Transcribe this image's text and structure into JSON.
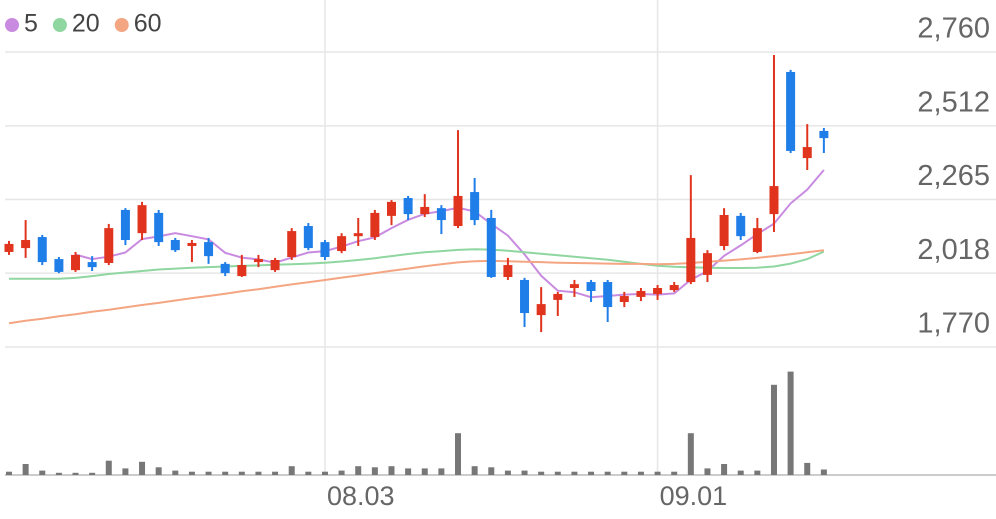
{
  "chart_data": {
    "type": "candlestick",
    "categories": [
      null,
      null,
      null,
      null,
      null,
      null,
      null,
      null,
      null,
      null,
      null,
      null,
      null,
      null,
      null,
      null,
      null,
      null,
      null,
      "08.03",
      null,
      null,
      null,
      null,
      null,
      null,
      null,
      null,
      null,
      null,
      null,
      null,
      null,
      null,
      null,
      null,
      null,
      null,
      null,
      "09.01",
      null,
      null,
      null,
      null,
      null,
      null,
      null,
      null,
      null,
      null
    ],
    "open": [
      2089,
      2102,
      2139,
      2065,
      2028,
      2055,
      2052,
      2230,
      2152,
      2220,
      2129,
      2109,
      2122,
      2049,
      2008,
      2055,
      2028,
      2072,
      2176,
      2122,
      2092,
      2142,
      2139,
      2210,
      2270,
      2216,
      2236,
      2176,
      2290,
      2203,
      2005,
      1995,
      1877,
      1928,
      1968,
      1988,
      1988,
      1921,
      1938,
      1948,
      1961,
      1988,
      2012,
      2109,
      2210,
      2089,
      2216,
      2693,
      2404,
      2495
    ],
    "high": [
      2126,
      2196,
      2146,
      2072,
      2089,
      2075,
      2183,
      2236,
      2257,
      2230,
      2136,
      2129,
      2136,
      2055,
      2079,
      2079,
      2069,
      2169,
      2186,
      2129,
      2152,
      2203,
      2230,
      2263,
      2277,
      2283,
      2246,
      2498,
      2337,
      2230,
      2069,
      2002,
      1971,
      1955,
      1995,
      1995,
      1995,
      1955,
      1968,
      1978,
      1988,
      2347,
      2095,
      2236,
      2220,
      2203,
      2750,
      2700,
      2518,
      2505
    ],
    "low": [
      2079,
      2069,
      2045,
      2018,
      2022,
      2025,
      2045,
      2112,
      2129,
      2109,
      2089,
      2055,
      2049,
      2008,
      2005,
      2038,
      2022,
      2062,
      2095,
      2062,
      2085,
      2109,
      2129,
      2179,
      2196,
      2206,
      2149,
      2169,
      2179,
      2002,
      1995,
      1837,
      1820,
      1874,
      1938,
      1921,
      1854,
      1904,
      1924,
      1928,
      1955,
      1981,
      1988,
      2095,
      2129,
      2085,
      2156,
      2421,
      2364,
      2421
    ],
    "close": [
      2116,
      2129,
      2055,
      2022,
      2079,
      2038,
      2169,
      2129,
      2246,
      2122,
      2095,
      2119,
      2075,
      2018,
      2045,
      2065,
      2062,
      2159,
      2102,
      2072,
      2142,
      2152,
      2220,
      2257,
      2216,
      2240,
      2196,
      2277,
      2196,
      2005,
      2045,
      1884,
      1914,
      1948,
      1981,
      1958,
      1904,
      1941,
      1958,
      1968,
      1978,
      2136,
      2085,
      2213,
      2142,
      2169,
      2310,
      2428,
      2441,
      2471
    ],
    "up_color": "#e0341e",
    "down_color": "#1f7ee8",
    "series": [
      {
        "name": "5",
        "color": "#c98be0",
        "values": [
          null,
          null,
          null,
          null,
          2080,
          2065,
          2073,
          2087,
          2132,
          2141,
          2152,
          2142,
          2131,
          2086,
          2070,
          2064,
          2053,
          2070,
          2087,
          2092,
          2107,
          2125,
          2138,
          2169,
          2197,
          2217,
          2226,
          2237,
          2225,
          2183,
          2144,
          2081,
          2009,
          1959,
          1954,
          1937,
          1941,
          1946,
          1948,
          1946,
          1950,
          1996,
          2025,
          2076,
          2111,
          2149,
          2184,
          2252,
          2298,
          2364
        ]
      },
      {
        "name": "20",
        "color": "#8fd6a0",
        "values": [
          1999,
          1999,
          1999,
          1999,
          2002,
          2008,
          2015,
          2020,
          2025,
          2030,
          2033,
          2036,
          2038,
          2040,
          2042,
          2044,
          2046,
          2048,
          2050,
          2053,
          2057,
          2062,
          2068,
          2075,
          2082,
          2088,
          2092,
          2096,
          2098,
          2097,
          2093,
          2088,
          2083,
          2078,
          2073,
          2068,
          2063,
          2056,
          2049,
          2043,
          2039,
          2037,
          2036,
          2035,
          2035,
          2036,
          2040,
          2050,
          2065,
          2090
        ]
      },
      {
        "name": "60",
        "color": "#f4a582",
        "values": [
          1850,
          1858,
          1865,
          1873,
          1880,
          1888,
          1895,
          1903,
          1911,
          1918,
          1926,
          1934,
          1941,
          1949,
          1957,
          1964,
          1972,
          1980,
          1987,
          1995,
          2003,
          2010,
          2018,
          2026,
          2033,
          2041,
          2048,
          2054,
          2058,
          2059,
          2058,
          2056,
          2055,
          2053,
          2052,
          2051,
          2050,
          2049,
          2049,
          2048,
          2049,
          2052,
          2056,
          2060,
          2064,
          2069,
          2075,
          2081,
          2088,
          2095
        ]
      }
    ],
    "volume": [
      3,
      10,
      4,
      2,
      2,
      2,
      13,
      6,
      12,
      7,
      4,
      3,
      3,
      3,
      3,
      3,
      3,
      8,
      3,
      3,
      4,
      8,
      7,
      8,
      6,
      6,
      6,
      38,
      8,
      7,
      4,
      4,
      3,
      3,
      3,
      3,
      3,
      3,
      3,
      3,
      3,
      38,
      6,
      10,
      4,
      4,
      82,
      94,
      11,
      5
    ],
    "volume_color": "#777777",
    "vlim": [
      0,
      100
    ],
    "ylim": [
      1770,
      2760
    ],
    "yticks": [
      {
        "value": 1770,
        "label": "1,770"
      },
      {
        "value": 2018,
        "label": "2,018"
      },
      {
        "value": 2265,
        "label": "2,265"
      },
      {
        "value": 2512,
        "label": "2,512"
      },
      {
        "value": 2760,
        "label": "2,760"
      }
    ],
    "grid": true
  }
}
